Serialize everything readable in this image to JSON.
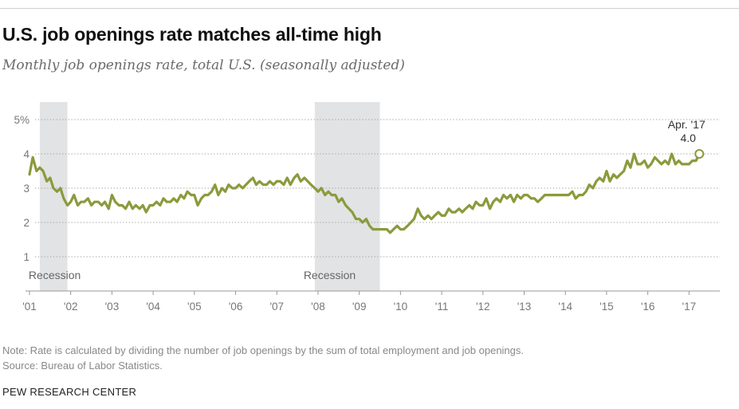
{
  "header": {
    "title": "U.S. job openings rate matches all-time high",
    "subtitle": "Monthly job openings rate, total U.S. (seasonally adjusted)"
  },
  "footer": {
    "note": "Note: Rate is calculated by dividing the number of job openings by the sum of total employment and job openings.",
    "source": "Source: Bureau of Labor Statistics.",
    "brand": "PEW RESEARCH CENTER"
  },
  "colors": {
    "line": "#8c9a3c",
    "recession": "#e2e3e5",
    "grid": "#9a9a9a",
    "axis": "#999999"
  },
  "chart_data": {
    "type": "line",
    "title": "U.S. job openings rate matches all-time high",
    "xlabel": "",
    "ylabel": "",
    "xlim": [
      2001.0,
      2017.4
    ],
    "ylim": [
      0,
      5
    ],
    "y_ticks": [
      1,
      2,
      3,
      4,
      5
    ],
    "y_tick_labels": [
      "1",
      "2",
      "3",
      "4",
      "5%"
    ],
    "x_ticks": [
      2001,
      2002,
      2003,
      2004,
      2005,
      2006,
      2007,
      2008,
      2009,
      2010,
      2011,
      2012,
      2013,
      2014,
      2015,
      2016,
      2017
    ],
    "x_tick_labels": [
      "'01",
      "'02",
      "'03",
      "'04",
      "'05",
      "'06",
      "'07",
      "'08",
      "'09",
      "'10",
      "'11",
      "'12",
      "'13",
      "'14",
      "'15",
      "'16",
      "'17"
    ],
    "grid": "horizontal dotted",
    "recessions": [
      {
        "label": "Recession",
        "start": 2001.25,
        "end": 2001.92
      },
      {
        "label": "Recession",
        "start": 2007.92,
        "end": 2009.5
      }
    ],
    "annotation": {
      "date": "Apr. '17",
      "value": "4.0"
    },
    "series": [
      {
        "name": "Job openings rate",
        "points": [
          [
            2001.0,
            3.4
          ],
          [
            2001.08,
            3.9
          ],
          [
            2001.17,
            3.5
          ],
          [
            2001.25,
            3.6
          ],
          [
            2001.33,
            3.5
          ],
          [
            2001.42,
            3.2
          ],
          [
            2001.5,
            3.3
          ],
          [
            2001.58,
            3.0
          ],
          [
            2001.67,
            2.9
          ],
          [
            2001.75,
            3.0
          ],
          [
            2001.83,
            2.7
          ],
          [
            2001.92,
            2.5
          ],
          [
            2002.0,
            2.6
          ],
          [
            2002.08,
            2.8
          ],
          [
            2002.17,
            2.5
          ],
          [
            2002.25,
            2.6
          ],
          [
            2002.33,
            2.6
          ],
          [
            2002.42,
            2.7
          ],
          [
            2002.5,
            2.5
          ],
          [
            2002.58,
            2.6
          ],
          [
            2002.67,
            2.6
          ],
          [
            2002.75,
            2.5
          ],
          [
            2002.83,
            2.6
          ],
          [
            2002.92,
            2.4
          ],
          [
            2003.0,
            2.8
          ],
          [
            2003.08,
            2.6
          ],
          [
            2003.17,
            2.5
          ],
          [
            2003.25,
            2.5
          ],
          [
            2003.33,
            2.4
          ],
          [
            2003.42,
            2.6
          ],
          [
            2003.5,
            2.4
          ],
          [
            2003.58,
            2.5
          ],
          [
            2003.67,
            2.4
          ],
          [
            2003.75,
            2.5
          ],
          [
            2003.83,
            2.3
          ],
          [
            2003.92,
            2.5
          ],
          [
            2004.0,
            2.5
          ],
          [
            2004.08,
            2.6
          ],
          [
            2004.17,
            2.5
          ],
          [
            2004.25,
            2.7
          ],
          [
            2004.33,
            2.6
          ],
          [
            2004.42,
            2.6
          ],
          [
            2004.5,
            2.7
          ],
          [
            2004.58,
            2.6
          ],
          [
            2004.67,
            2.8
          ],
          [
            2004.75,
            2.7
          ],
          [
            2004.83,
            2.9
          ],
          [
            2004.92,
            2.8
          ],
          [
            2005.0,
            2.8
          ],
          [
            2005.08,
            2.5
          ],
          [
            2005.17,
            2.7
          ],
          [
            2005.25,
            2.8
          ],
          [
            2005.33,
            2.8
          ],
          [
            2005.42,
            2.9
          ],
          [
            2005.5,
            3.1
          ],
          [
            2005.58,
            2.8
          ],
          [
            2005.67,
            3.0
          ],
          [
            2005.75,
            2.9
          ],
          [
            2005.83,
            3.1
          ],
          [
            2005.92,
            3.0
          ],
          [
            2006.0,
            3.0
          ],
          [
            2006.08,
            3.1
          ],
          [
            2006.17,
            3.0
          ],
          [
            2006.25,
            3.1
          ],
          [
            2006.33,
            3.2
          ],
          [
            2006.42,
            3.3
          ],
          [
            2006.5,
            3.1
          ],
          [
            2006.58,
            3.2
          ],
          [
            2006.67,
            3.1
          ],
          [
            2006.75,
            3.1
          ],
          [
            2006.83,
            3.2
          ],
          [
            2006.92,
            3.1
          ],
          [
            2007.0,
            3.2
          ],
          [
            2007.08,
            3.2
          ],
          [
            2007.17,
            3.1
          ],
          [
            2007.25,
            3.3
          ],
          [
            2007.33,
            3.1
          ],
          [
            2007.42,
            3.3
          ],
          [
            2007.5,
            3.4
          ],
          [
            2007.58,
            3.2
          ],
          [
            2007.67,
            3.3
          ],
          [
            2007.75,
            3.2
          ],
          [
            2007.83,
            3.1
          ],
          [
            2007.92,
            3.0
          ],
          [
            2008.0,
            2.9
          ],
          [
            2008.08,
            3.0
          ],
          [
            2008.17,
            2.8
          ],
          [
            2008.25,
            2.9
          ],
          [
            2008.33,
            2.8
          ],
          [
            2008.42,
            2.8
          ],
          [
            2008.5,
            2.6
          ],
          [
            2008.58,
            2.7
          ],
          [
            2008.67,
            2.5
          ],
          [
            2008.75,
            2.4
          ],
          [
            2008.83,
            2.3
          ],
          [
            2008.92,
            2.1
          ],
          [
            2009.0,
            2.1
          ],
          [
            2009.08,
            2.0
          ],
          [
            2009.17,
            2.1
          ],
          [
            2009.25,
            1.9
          ],
          [
            2009.33,
            1.8
          ],
          [
            2009.42,
            1.8
          ],
          [
            2009.5,
            1.8
          ],
          [
            2009.58,
            1.8
          ],
          [
            2009.67,
            1.8
          ],
          [
            2009.75,
            1.7
          ],
          [
            2009.83,
            1.8
          ],
          [
            2009.92,
            1.9
          ],
          [
            2010.0,
            1.8
          ],
          [
            2010.08,
            1.8
          ],
          [
            2010.17,
            1.9
          ],
          [
            2010.25,
            2.0
          ],
          [
            2010.33,
            2.1
          ],
          [
            2010.42,
            2.4
          ],
          [
            2010.5,
            2.2
          ],
          [
            2010.58,
            2.1
          ],
          [
            2010.67,
            2.2
          ],
          [
            2010.75,
            2.1
          ],
          [
            2010.83,
            2.2
          ],
          [
            2010.92,
            2.3
          ],
          [
            2011.0,
            2.2
          ],
          [
            2011.08,
            2.2
          ],
          [
            2011.17,
            2.4
          ],
          [
            2011.25,
            2.3
          ],
          [
            2011.33,
            2.3
          ],
          [
            2011.42,
            2.4
          ],
          [
            2011.5,
            2.3
          ],
          [
            2011.58,
            2.4
          ],
          [
            2011.67,
            2.5
          ],
          [
            2011.75,
            2.4
          ],
          [
            2011.83,
            2.6
          ],
          [
            2011.92,
            2.5
          ],
          [
            2012.0,
            2.5
          ],
          [
            2012.08,
            2.7
          ],
          [
            2012.17,
            2.4
          ],
          [
            2012.25,
            2.6
          ],
          [
            2012.33,
            2.7
          ],
          [
            2012.42,
            2.6
          ],
          [
            2012.5,
            2.8
          ],
          [
            2012.58,
            2.7
          ],
          [
            2012.67,
            2.8
          ],
          [
            2012.75,
            2.6
          ],
          [
            2012.83,
            2.8
          ],
          [
            2012.92,
            2.7
          ],
          [
            2013.0,
            2.8
          ],
          [
            2013.08,
            2.8
          ],
          [
            2013.17,
            2.7
          ],
          [
            2013.25,
            2.7
          ],
          [
            2013.33,
            2.6
          ],
          [
            2013.42,
            2.7
          ],
          [
            2013.5,
            2.8
          ],
          [
            2013.58,
            2.8
          ],
          [
            2013.67,
            2.8
          ],
          [
            2013.75,
            2.8
          ],
          [
            2013.83,
            2.8
          ],
          [
            2013.92,
            2.8
          ],
          [
            2014.0,
            2.8
          ],
          [
            2014.08,
            2.8
          ],
          [
            2014.17,
            2.9
          ],
          [
            2014.25,
            2.7
          ],
          [
            2014.33,
            2.8
          ],
          [
            2014.42,
            2.8
          ],
          [
            2014.5,
            2.9
          ],
          [
            2014.58,
            3.1
          ],
          [
            2014.67,
            3.0
          ],
          [
            2014.75,
            3.2
          ],
          [
            2014.83,
            3.3
          ],
          [
            2014.92,
            3.2
          ],
          [
            2015.0,
            3.5
          ],
          [
            2015.08,
            3.2
          ],
          [
            2015.17,
            3.4
          ],
          [
            2015.25,
            3.3
          ],
          [
            2015.33,
            3.4
          ],
          [
            2015.42,
            3.5
          ],
          [
            2015.5,
            3.8
          ],
          [
            2015.58,
            3.6
          ],
          [
            2015.67,
            4.0
          ],
          [
            2015.75,
            3.7
          ],
          [
            2015.83,
            3.7
          ],
          [
            2015.92,
            3.8
          ],
          [
            2016.0,
            3.6
          ],
          [
            2016.08,
            3.7
          ],
          [
            2016.17,
            3.9
          ],
          [
            2016.25,
            3.8
          ],
          [
            2016.33,
            3.7
          ],
          [
            2016.42,
            3.8
          ],
          [
            2016.5,
            3.7
          ],
          [
            2016.58,
            4.0
          ],
          [
            2016.67,
            3.7
          ],
          [
            2016.75,
            3.8
          ],
          [
            2016.83,
            3.7
          ],
          [
            2016.92,
            3.7
          ],
          [
            2017.0,
            3.7
          ],
          [
            2017.08,
            3.8
          ],
          [
            2017.17,
            3.8
          ],
          [
            2017.25,
            4.0
          ]
        ]
      }
    ]
  }
}
